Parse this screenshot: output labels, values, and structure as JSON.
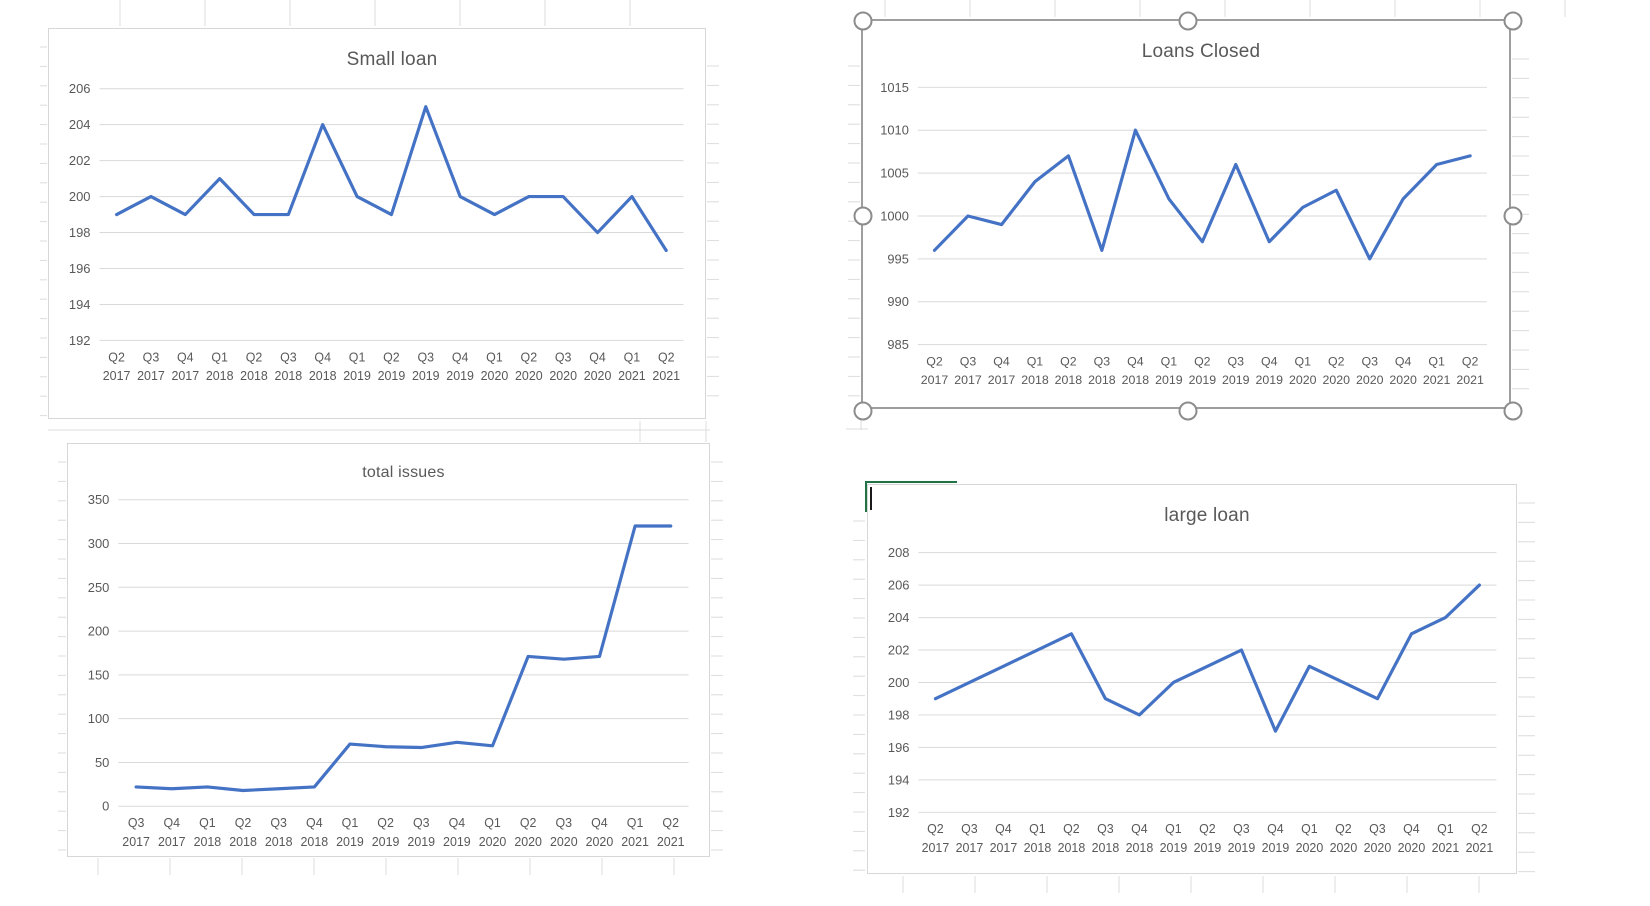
{
  "sheet": {
    "background_color": "#FFFFFF",
    "gridline_color": "#DCDCDC",
    "active_cell": {
      "border_color": "#217346",
      "cursor_glyph": "|"
    }
  },
  "chart_defaults": {
    "line_color": "#4472C4",
    "grid_color": "#D9D9D9",
    "text_color": "#595959",
    "border_color": "#D7D7D7",
    "selected_border_color": "#9E9E9E",
    "selection_handle_color": "#8C8C8C",
    "legend": "none"
  },
  "chart_data": [
    {
      "type": "line",
      "title": "Small loan",
      "categories": [
        "Q2 2017",
        "Q3 2017",
        "Q4 2017",
        "Q1 2018",
        "Q2 2018",
        "Q3 2018",
        "Q4 2018",
        "Q1 2019",
        "Q2 2019",
        "Q3 2019",
        "Q4 2019",
        "Q1 2020",
        "Q2 2020",
        "Q3 2020",
        "Q4 2020",
        "Q1 2021",
        "Q2 2021"
      ],
      "values": [
        199,
        200,
        199,
        201,
        199,
        199,
        204,
        200,
        199,
        205,
        200,
        199,
        200,
        200,
        198,
        200,
        197
      ],
      "ylim": [
        192,
        206
      ],
      "ytick_step": 2,
      "ytick_labels": [
        206,
        204,
        202,
        200,
        198,
        196,
        194,
        192
      ],
      "grid": true,
      "selected": false
    },
    {
      "type": "line",
      "title": "Loans Closed",
      "categories": [
        "Q2 2017",
        "Q3 2017",
        "Q4 2017",
        "Q1 2018",
        "Q2 2018",
        "Q3 2018",
        "Q4 2018",
        "Q1 2019",
        "Q2 2019",
        "Q3 2019",
        "Q4 2019",
        "Q1 2020",
        "Q2 2020",
        "Q3 2020",
        "Q4 2020",
        "Q1 2021",
        "Q2 2021"
      ],
      "values": [
        996,
        1000,
        999,
        1004,
        1007,
        996,
        1010,
        1002,
        997,
        1006,
        997,
        1001,
        1003,
        995,
        1002,
        1006,
        1007
      ],
      "ylim": [
        985,
        1015
      ],
      "ytick_step": 5,
      "ytick_labels": [
        1015,
        1010,
        1005,
        1000,
        995,
        990,
        985
      ],
      "grid": true,
      "selected": true
    },
    {
      "type": "line",
      "title": "total issues",
      "categories": [
        "Q3 2017",
        "Q4 2017",
        "Q1 2018",
        "Q2 2018",
        "Q3 2018",
        "Q4 2018",
        "Q1 2019",
        "Q2 2019",
        "Q3 2019",
        "Q4 2019",
        "Q1 2020",
        "Q2 2020",
        "Q3 2020",
        "Q4 2020",
        "Q1 2021",
        "Q2 2021"
      ],
      "values": [
        22,
        20,
        22,
        18,
        20,
        22,
        71,
        68,
        67,
        73,
        69,
        171,
        168,
        171,
        320,
        320
      ],
      "ylim": [
        0,
        350
      ],
      "ytick_step": 50,
      "ytick_labels": [
        350,
        300,
        250,
        200,
        150,
        100,
        50,
        0
      ],
      "grid": true,
      "selected": false
    },
    {
      "type": "line",
      "title": "large loan",
      "categories": [
        "Q2 2017",
        "Q3 2017",
        "Q4 2017",
        "Q1 2018",
        "Q2 2018",
        "Q3 2018",
        "Q4 2018",
        "Q1 2019",
        "Q2 2019",
        "Q3 2019",
        "Q4 2019",
        "Q1 2020",
        "Q2 2020",
        "Q3 2020",
        "Q4 2020",
        "Q1 2021",
        "Q2 2021"
      ],
      "values": [
        199,
        200,
        201,
        202,
        203,
        199,
        198,
        200,
        201,
        202,
        197,
        201,
        200,
        199,
        203,
        204,
        206
      ],
      "ylim": [
        192,
        208
      ],
      "ytick_step": 2,
      "ytick_labels": [
        208,
        206,
        204,
        202,
        200,
        198,
        196,
        194,
        192
      ],
      "grid": true,
      "selected": false
    }
  ]
}
